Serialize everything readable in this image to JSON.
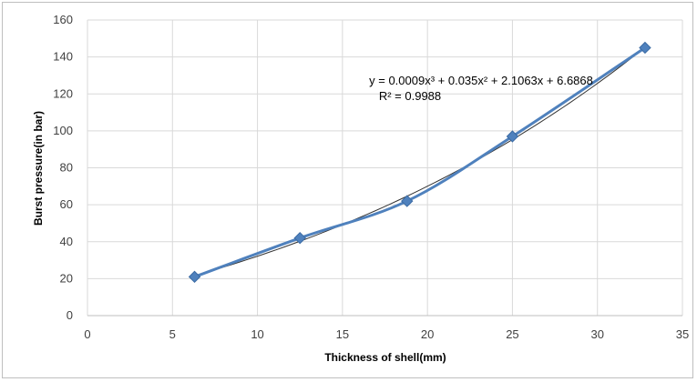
{
  "chart_data": {
    "type": "scatter",
    "xlabel": "Thickness of shell(mm)",
    "ylabel": "Burst pressure(in bar)",
    "xlim": [
      0,
      35
    ],
    "ylim": [
      0,
      160
    ],
    "xticks": [
      0,
      5,
      10,
      15,
      20,
      25,
      30,
      35
    ],
    "yticks": [
      0,
      20,
      40,
      60,
      80,
      100,
      120,
      140,
      160
    ],
    "grid": true,
    "series": [
      {
        "x": [
          6.3,
          12.5,
          18.8,
          25,
          32.8
        ],
        "y": [
          21,
          42,
          62,
          97,
          145
        ],
        "color": "#4f81bd",
        "marker": "diamond",
        "line": "smooth"
      }
    ],
    "trendline": {
      "type": "polynomial",
      "order": 3,
      "coefficients": [
        0.0009,
        0.035,
        2.1063,
        6.6868
      ],
      "color": "#333333"
    },
    "annotations": {
      "equation": "y = 0.0009x³ + 0.035x² + 2.1063x + 6.6868",
      "r2": "R² = 0.9988"
    }
  }
}
